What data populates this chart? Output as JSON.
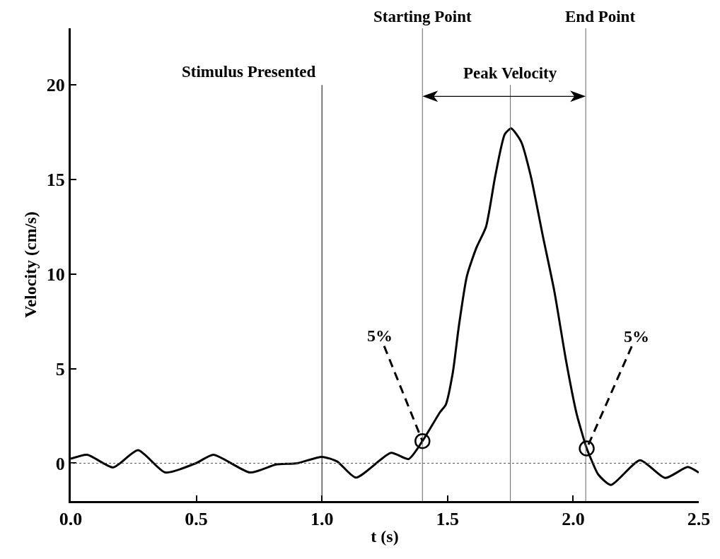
{
  "chart_data": {
    "type": "line",
    "xlabel": "t (s)",
    "ylabel": "Velocity (cm/s)",
    "color": "#000000",
    "x": [
      0,
      0.066,
      0.169,
      0.268,
      0.376,
      0.498,
      0.568,
      0.714,
      0.817,
      0.901,
      1.0,
      1.061,
      1.135,
      1.275,
      1.345,
      1.4,
      1.47,
      1.493,
      1.521,
      1.545,
      1.577,
      1.615,
      1.653,
      1.69,
      1.728,
      1.753,
      1.793,
      1.831,
      1.878,
      1.925,
      1.972,
      2.014,
      2.054,
      2.074,
      2.1,
      2.15,
      2.266,
      2.366,
      2.456,
      2.5
    ],
    "values": [
      0.24,
      0.45,
      -0.22,
      0.69,
      -0.49,
      0,
      0.45,
      -0.49,
      -0.07,
      0,
      0.34,
      0.09,
      -0.76,
      0.55,
      0.22,
      1.17,
      2.7,
      3.1,
      4.8,
      7.25,
      9.9,
      11.4,
      12.5,
      15.2,
      17.4,
      17.7,
      17.0,
      15.2,
      12.1,
      9.1,
      5.4,
      2.6,
      0.78,
      0.13,
      -0.6,
      -1.15,
      0.16,
      -0.78,
      -0.2,
      -0.5
    ],
    "xlim": [
      0,
      2.5
    ],
    "ylim": [
      -2,
      23
    ],
    "xticks": [
      {
        "value": 0,
        "label": "0.0"
      },
      {
        "value": 0.5,
        "label": "0.5"
      },
      {
        "value": 1,
        "label": "1.0"
      },
      {
        "value": 1.5,
        "label": "1.5"
      },
      {
        "value": 2,
        "label": "2.0"
      },
      {
        "value": 2.5,
        "label": "2.5"
      }
    ],
    "yticks": [
      0,
      5,
      10,
      15,
      20
    ],
    "ref_lines": [
      {
        "axis": "x",
        "value": 1.0,
        "label": "Stimulus Presented",
        "color": "#000000"
      },
      {
        "axis": "x",
        "value": 1.4,
        "label": "Starting Point",
        "color": "#666666"
      },
      {
        "axis": "x",
        "value": 2.05,
        "label": "End Point",
        "color": "#666666"
      },
      {
        "axis": "x",
        "value": 1.75,
        "label": "Peak Velocity",
        "color": "#666666"
      },
      {
        "axis": "y",
        "value": 0,
        "color": "#555555",
        "line_style": "dotted"
      }
    ],
    "annotations": [
      {
        "text": "5%",
        "x": 1.4,
        "y": 1.17
      },
      {
        "text": "5%",
        "x": 2.054,
        "y": 0.78
      }
    ]
  }
}
